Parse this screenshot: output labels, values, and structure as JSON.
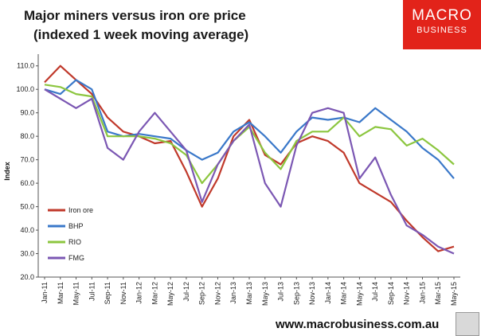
{
  "header": {
    "title_line1": "Major miners versus iron ore price",
    "title_line2": "(indexed 1 week moving average)"
  },
  "logo": {
    "line1": "MACRO",
    "line2": "BUSINESS"
  },
  "footer": {
    "url": "www.macrobusiness.com.au"
  },
  "colors": {
    "Iron ore": "#c0392b",
    "BHP": "#3a78c9",
    "RIO": "#8cc63f",
    "FMG": "#7b57b3"
  },
  "chart_data": {
    "type": "line",
    "title": "Major miners versus iron ore price (indexed 1 week moving average)",
    "xlabel": "",
    "ylabel": "Index",
    "ylim": [
      20,
      115
    ],
    "yticks": [
      "20.0",
      "30.0",
      "40.0",
      "50.0",
      "60.0",
      "70.0",
      "80.0",
      "90.0",
      "100.0",
      "110.0"
    ],
    "x": [
      "Jan-11",
      "Mar-11",
      "May-11",
      "Jul-11",
      "Sep-11",
      "Nov-11",
      "Jan-12",
      "Mar-12",
      "May-12",
      "Jul-12",
      "Sep-12",
      "Nov-12",
      "Jan-13",
      "Mar-13",
      "May-13",
      "Jul-13",
      "Sep-13",
      "Nov-13",
      "Jan-14",
      "Mar-14",
      "May-14",
      "Jul-14",
      "Sep-14",
      "Nov-14",
      "Jan-15",
      "Mar-15",
      "May-15"
    ],
    "legend_position": "lower-left inside",
    "grid": false,
    "series": [
      {
        "name": "Iron ore",
        "values": [
          103,
          110,
          104,
          98,
          88,
          82,
          80,
          77,
          78,
          65,
          50,
          62,
          80,
          87,
          72,
          68,
          77,
          80,
          78,
          73,
          60,
          56,
          52,
          44,
          37,
          31,
          33
        ]
      },
      {
        "name": "BHP",
        "values": [
          100,
          98,
          104,
          100,
          82,
          80,
          81,
          80,
          79,
          74,
          70,
          73,
          82,
          86,
          80,
          73,
          82,
          88,
          87,
          88,
          86,
          92,
          87,
          82,
          75,
          70,
          62
        ]
      },
      {
        "name": "RIO",
        "values": [
          102,
          101,
          98,
          97,
          80,
          80,
          80,
          79,
          77,
          72,
          60,
          68,
          78,
          84,
          73,
          66,
          78,
          82,
          82,
          88,
          80,
          84,
          83,
          76,
          79,
          74,
          68
        ]
      },
      {
        "name": "FMG",
        "values": [
          100,
          96,
          92,
          96,
          75,
          70,
          82,
          90,
          82,
          74,
          52,
          68,
          78,
          85,
          60,
          50,
          76,
          90,
          92,
          90,
          62,
          71,
          55,
          42,
          38,
          33,
          30
        ]
      }
    ]
  }
}
